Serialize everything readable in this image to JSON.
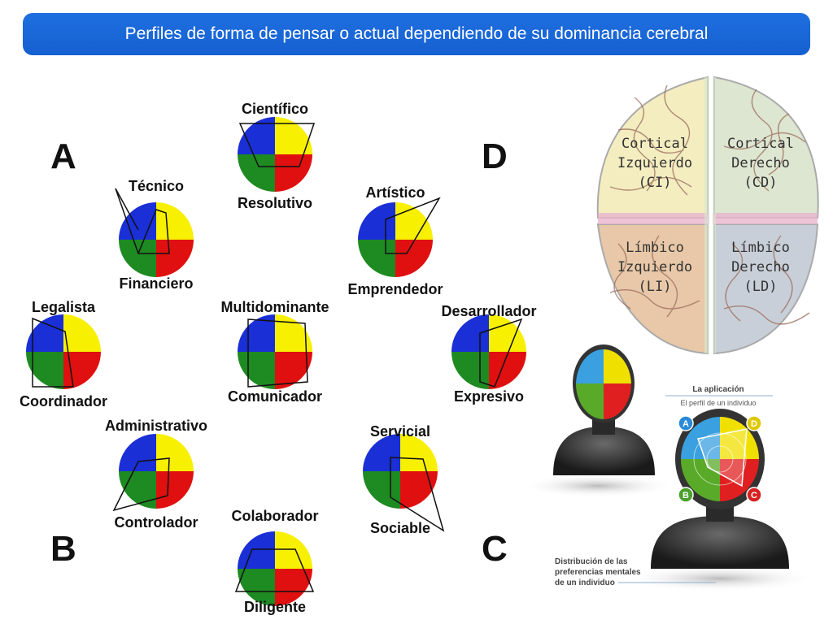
{
  "header": {
    "title": "Perfiles de forma de pensar o actual dependiendo de su dominancia cerebral"
  },
  "quadrant_letters": {
    "top_left": "A",
    "top_right": "D",
    "bottom_left": "B",
    "bottom_right": "C"
  },
  "profiles": [
    {
      "top": "Científico",
      "bottom": "Resolutivo"
    },
    {
      "top": "Técnico",
      "bottom": "Financiero"
    },
    {
      "top": "Artístico",
      "bottom": "Emprendedor"
    },
    {
      "top": "Legalista",
      "bottom": "Coordinador"
    },
    {
      "top": "Multidominante",
      "bottom": "Comunicador"
    },
    {
      "top": "Desarrollador",
      "bottom": "Expresivo"
    },
    {
      "top": "Administrativo",
      "bottom": "Controlador"
    },
    {
      "top": "Servicial",
      "bottom": "Sociable"
    },
    {
      "top": "Colaborador",
      "bottom": "Diligente"
    }
  ],
  "brain": {
    "ci": [
      "Cortical",
      "Izquierdo",
      "(CI)"
    ],
    "cd": [
      "Cortical",
      "Derecho",
      "(CD)"
    ],
    "li": [
      "Límbico",
      "Izquierdo",
      "(LI)"
    ],
    "ld": [
      "Límbico",
      "Derecho",
      "(LD)"
    ]
  },
  "application": {
    "title": "La aplicación",
    "subtitle": "El perfil de un individuo",
    "badges": [
      "A",
      "D",
      "B",
      "C"
    ],
    "caption_lines": [
      "Distribución de las",
      "preferencias mentales",
      "de un individuo"
    ]
  },
  "colors": {
    "title_bar": "#1f6fe0",
    "quadrant_blue": "#1a2fd6",
    "quadrant_yellow": "#f7f000",
    "quadrant_green": "#1e8a22",
    "quadrant_red": "#e01010"
  }
}
